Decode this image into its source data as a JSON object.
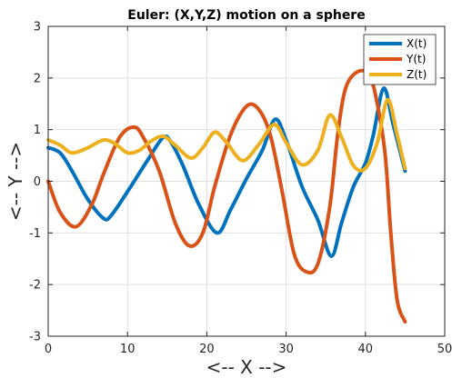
{
  "chart_data": {
    "type": "line",
    "title": "Euler: (X,Y,Z) motion on a sphere",
    "xlabel": "<-- X -->",
    "ylabel": "<-- Y -->",
    "xlim": [
      0,
      50
    ],
    "ylim": [
      -3,
      3
    ],
    "xticks": [
      "0",
      "10",
      "20",
      "30",
      "40",
      "50"
    ],
    "yticks": [
      "-3",
      "-2",
      "-1",
      "0",
      "1",
      "2",
      "3"
    ],
    "grid": true,
    "legend_position": "top-right",
    "series": [
      {
        "name": "X(t)",
        "color": "#0072BD",
        "points": [
          [
            0,
            0.65
          ],
          [
            1.5,
            0.55
          ],
          [
            3,
            0.2
          ],
          [
            5,
            -0.35
          ],
          [
            7,
            -0.72
          ],
          [
            8,
            -0.65
          ],
          [
            10,
            -0.2
          ],
          [
            12.5,
            0.4
          ],
          [
            14.5,
            0.85
          ],
          [
            15.5,
            0.75
          ],
          [
            17,
            0.3
          ],
          [
            19,
            -0.45
          ],
          [
            21.3,
            -1.0
          ],
          [
            23,
            -0.55
          ],
          [
            25,
            0.05
          ],
          [
            27,
            0.6
          ],
          [
            28.6,
            1.2
          ],
          [
            30,
            0.8
          ],
          [
            32,
            -0.1
          ],
          [
            34,
            -0.75
          ],
          [
            35.7,
            -1.45
          ],
          [
            37,
            -0.8
          ],
          [
            38.5,
            -0.1
          ],
          [
            40,
            0.35
          ],
          [
            41,
            0.9
          ],
          [
            42.3,
            1.8
          ],
          [
            43.5,
            1.1
          ],
          [
            45,
            0.2
          ]
        ]
      },
      {
        "name": "Y(t)",
        "color": "#D95319",
        "points": [
          [
            0,
            0.0
          ],
          [
            1.5,
            -0.6
          ],
          [
            3.5,
            -0.88
          ],
          [
            5.5,
            -0.45
          ],
          [
            7,
            0.15
          ],
          [
            9,
            0.85
          ],
          [
            10.8,
            1.05
          ],
          [
            12,
            0.85
          ],
          [
            14,
            0.2
          ],
          [
            16,
            -0.8
          ],
          [
            17.8,
            -1.25
          ],
          [
            19.5,
            -1.0
          ],
          [
            21,
            -0.1
          ],
          [
            23,
            0.9
          ],
          [
            25,
            1.45
          ],
          [
            26.5,
            1.4
          ],
          [
            28,
            0.9
          ],
          [
            29.5,
            -0.2
          ],
          [
            31,
            -1.4
          ],
          [
            32.5,
            -1.75
          ],
          [
            34,
            -1.6
          ],
          [
            35.5,
            -0.5
          ],
          [
            36.5,
            0.9
          ],
          [
            37.5,
            1.8
          ],
          [
            39,
            2.12
          ],
          [
            40.5,
            2.05
          ],
          [
            41.5,
            1.5
          ],
          [
            42.5,
            0.5
          ],
          [
            43.2,
            -1.0
          ],
          [
            44,
            -2.3
          ],
          [
            45,
            -2.72
          ]
        ]
      },
      {
        "name": "Z(t)",
        "color": "#EDB120",
        "points": [
          [
            0,
            0.8
          ],
          [
            1.5,
            0.7
          ],
          [
            3,
            0.55
          ],
          [
            5,
            0.65
          ],
          [
            7,
            0.8
          ],
          [
            8.5,
            0.72
          ],
          [
            10,
            0.55
          ],
          [
            11.5,
            0.6
          ],
          [
            13,
            0.78
          ],
          [
            14.5,
            0.87
          ],
          [
            16,
            0.7
          ],
          [
            18,
            0.45
          ],
          [
            19.5,
            0.65
          ],
          [
            21,
            0.95
          ],
          [
            22.5,
            0.75
          ],
          [
            24.5,
            0.4
          ],
          [
            26.5,
            0.7
          ],
          [
            28.5,
            1.1
          ],
          [
            30,
            0.75
          ],
          [
            32,
            0.32
          ],
          [
            34,
            0.6
          ],
          [
            35.5,
            1.28
          ],
          [
            37,
            0.85
          ],
          [
            38.5,
            0.3
          ],
          [
            40,
            0.25
          ],
          [
            41.5,
            0.75
          ],
          [
            42.8,
            1.58
          ],
          [
            44,
            0.9
          ],
          [
            45,
            0.25
          ]
        ]
      }
    ]
  }
}
